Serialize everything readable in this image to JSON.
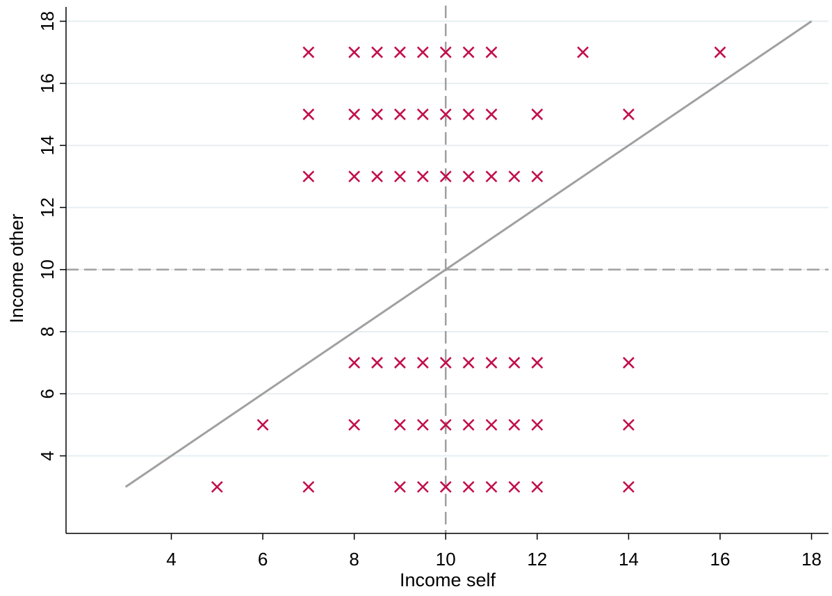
{
  "chart_data": {
    "type": "scatter",
    "title": "",
    "xlabel": "Income self",
    "ylabel": "Income other",
    "xlim": [
      0.7,
      18.3
    ],
    "ylim": [
      0.2,
      18.5
    ],
    "xticks": [
      4,
      6,
      8,
      10,
      12,
      14,
      16,
      18
    ],
    "yticks": [
      4,
      6,
      8,
      10,
      12,
      14,
      16,
      18
    ],
    "grid": "horizontal",
    "marker": "x",
    "colors": {
      "marker": "#c20e4a",
      "grid": "#e6eef0",
      "reference_line": "#a0a0a0",
      "diagonal": "#a0a0a0",
      "axis": "#000000"
    },
    "reference_lines": {
      "x": 10,
      "y": 10,
      "style": "dashed"
    },
    "diagonal_line": {
      "x": [
        3,
        18
      ],
      "y": [
        3,
        18
      ]
    },
    "points": [
      {
        "x": 7,
        "y": 17
      },
      {
        "x": 8,
        "y": 17
      },
      {
        "x": 8.5,
        "y": 17
      },
      {
        "x": 9,
        "y": 17
      },
      {
        "x": 9.5,
        "y": 17
      },
      {
        "x": 10,
        "y": 17
      },
      {
        "x": 10.5,
        "y": 17
      },
      {
        "x": 11,
        "y": 17
      },
      {
        "x": 13,
        "y": 17
      },
      {
        "x": 16,
        "y": 17
      },
      {
        "x": 7,
        "y": 15
      },
      {
        "x": 8,
        "y": 15
      },
      {
        "x": 8.5,
        "y": 15
      },
      {
        "x": 9,
        "y": 15
      },
      {
        "x": 9.5,
        "y": 15
      },
      {
        "x": 10,
        "y": 15
      },
      {
        "x": 10.5,
        "y": 15
      },
      {
        "x": 11,
        "y": 15
      },
      {
        "x": 12,
        "y": 15
      },
      {
        "x": 14,
        "y": 15
      },
      {
        "x": 7,
        "y": 13
      },
      {
        "x": 8,
        "y": 13
      },
      {
        "x": 8.5,
        "y": 13
      },
      {
        "x": 9,
        "y": 13
      },
      {
        "x": 9.5,
        "y": 13
      },
      {
        "x": 10,
        "y": 13
      },
      {
        "x": 10.5,
        "y": 13
      },
      {
        "x": 11,
        "y": 13
      },
      {
        "x": 11.5,
        "y": 13
      },
      {
        "x": 12,
        "y": 13
      },
      {
        "x": 8,
        "y": 7
      },
      {
        "x": 8.5,
        "y": 7
      },
      {
        "x": 9,
        "y": 7
      },
      {
        "x": 9.5,
        "y": 7
      },
      {
        "x": 10,
        "y": 7
      },
      {
        "x": 10.5,
        "y": 7
      },
      {
        "x": 11,
        "y": 7
      },
      {
        "x": 11.5,
        "y": 7
      },
      {
        "x": 12,
        "y": 7
      },
      {
        "x": 14,
        "y": 7
      },
      {
        "x": 6,
        "y": 5
      },
      {
        "x": 8,
        "y": 5
      },
      {
        "x": 9,
        "y": 5
      },
      {
        "x": 9.5,
        "y": 5
      },
      {
        "x": 10,
        "y": 5
      },
      {
        "x": 10.5,
        "y": 5
      },
      {
        "x": 11,
        "y": 5
      },
      {
        "x": 11.5,
        "y": 5
      },
      {
        "x": 12,
        "y": 5
      },
      {
        "x": 14,
        "y": 5
      },
      {
        "x": 5,
        "y": 3
      },
      {
        "x": 7,
        "y": 3
      },
      {
        "x": 9,
        "y": 3
      },
      {
        "x": 9.5,
        "y": 3
      },
      {
        "x": 10,
        "y": 3
      },
      {
        "x": 10.5,
        "y": 3
      },
      {
        "x": 11,
        "y": 3
      },
      {
        "x": 11.5,
        "y": 3
      },
      {
        "x": 12,
        "y": 3
      },
      {
        "x": 14,
        "y": 3
      }
    ]
  }
}
